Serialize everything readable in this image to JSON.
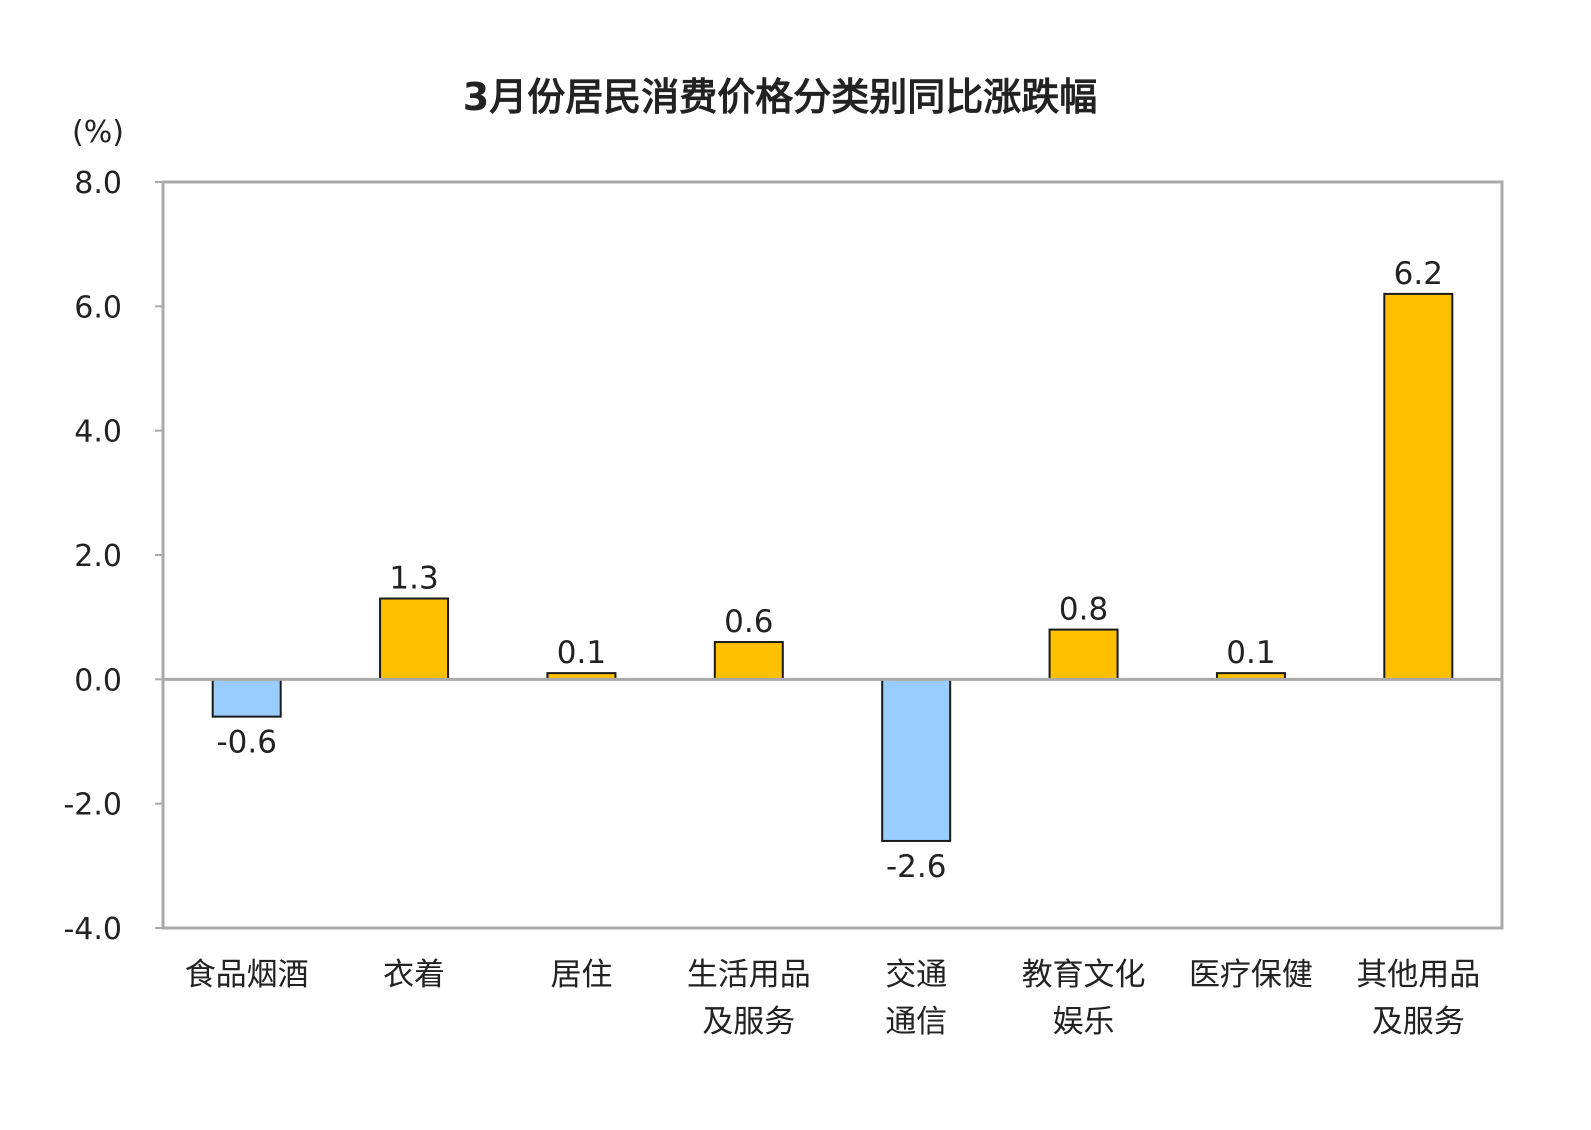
{
  "chart_data": {
    "type": "bar",
    "title": "3月份居民消费价格分类别同比涨跌幅",
    "ylabel": "(%)",
    "xlabel": "",
    "ylim": [
      -4.0,
      8.0
    ],
    "yticks": [
      "8.0",
      "6.0",
      "4.0",
      "2.0",
      "0.0",
      "-2.0",
      "-4.0"
    ],
    "ytick_values": [
      8,
      6,
      4,
      2,
      0,
      -2,
      -4
    ],
    "grid": false,
    "categories": [
      [
        "食品烟酒"
      ],
      [
        "衣着"
      ],
      [
        "居住"
      ],
      [
        "生活用品",
        "及服务"
      ],
      [
        "交通",
        "通信"
      ],
      [
        "教育文化",
        "娱乐"
      ],
      [
        "医疗保健"
      ],
      [
        "其他用品",
        "及服务"
      ]
    ],
    "values": [
      -0.6,
      1.3,
      0.1,
      0.6,
      -2.6,
      0.8,
      0.1,
      6.2
    ],
    "value_labels": [
      "-0.6",
      "1.3",
      "0.1",
      "0.6",
      "-2.6",
      "0.8",
      "0.1",
      "6.2"
    ],
    "colors": {
      "positive": "#FFC000",
      "negative": "#99CCFF",
      "border": "#1a1a1a",
      "frame": "#aaaaaa"
    }
  }
}
